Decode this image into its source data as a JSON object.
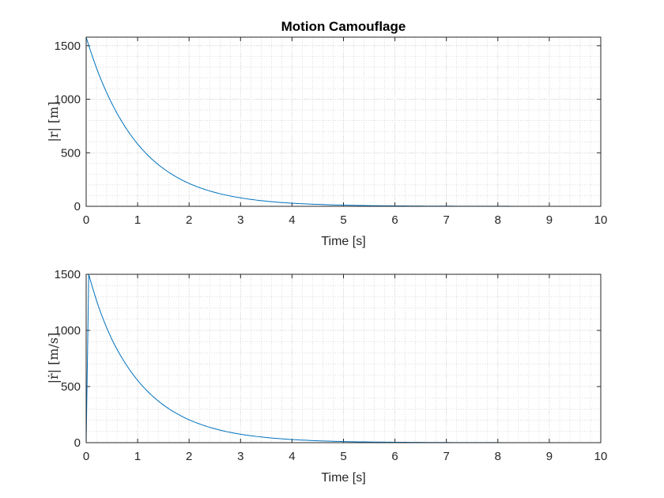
{
  "chart_data": [
    {
      "type": "line",
      "title": "Motion Camouflage",
      "xlabel": "Time [s]",
      "ylabel": "|r| [m]",
      "xlim": [
        0,
        10
      ],
      "ylim": [
        0,
        1580
      ],
      "xticks": [
        "0",
        "1",
        "2",
        "3",
        "4",
        "5",
        "6",
        "7",
        "8",
        "9",
        "10"
      ],
      "yticks": [
        "0",
        "500",
        "1000",
        "1500"
      ],
      "grid": "on (dotted minor)",
      "color": "#0072BD",
      "x": [
        0,
        0.25,
        0.5,
        0.75,
        1,
        1.25,
        1.5,
        1.75,
        2,
        2.5,
        3,
        3.5,
        4,
        4.5,
        5,
        6,
        7,
        8,
        9,
        10
      ],
      "y": [
        1580,
        1230,
        960,
        748,
        582,
        453,
        353,
        275,
        214,
        130,
        79,
        48,
        29,
        18,
        11,
        4,
        1.5,
        0.6,
        0.2,
        0.1
      ]
    },
    {
      "type": "line",
      "title": "",
      "xlabel": "Time [s]",
      "ylabel": "|ṙ| [m/s]",
      "xlim": [
        0,
        10
      ],
      "ylim": [
        0,
        1500
      ],
      "xticks": [
        "0",
        "1",
        "2",
        "3",
        "4",
        "5",
        "6",
        "7",
        "8",
        "9",
        "10"
      ],
      "yticks": [
        "0",
        "500",
        "1000",
        "1500"
      ],
      "grid": "on (dotted minor)",
      "color": "#0072BD",
      "x": [
        0,
        0.05,
        0.25,
        0.5,
        0.75,
        1,
        1.25,
        1.5,
        1.75,
        2,
        2.5,
        3,
        3.5,
        4,
        4.5,
        5,
        6,
        7,
        8,
        9,
        10
      ],
      "y": [
        0,
        1500,
        1200,
        920,
        715,
        555,
        432,
        336,
        262,
        204,
        124,
        75,
        46,
        28,
        17,
        10,
        3.8,
        1.4,
        0.5,
        0.2,
        0.1
      ]
    }
  ]
}
